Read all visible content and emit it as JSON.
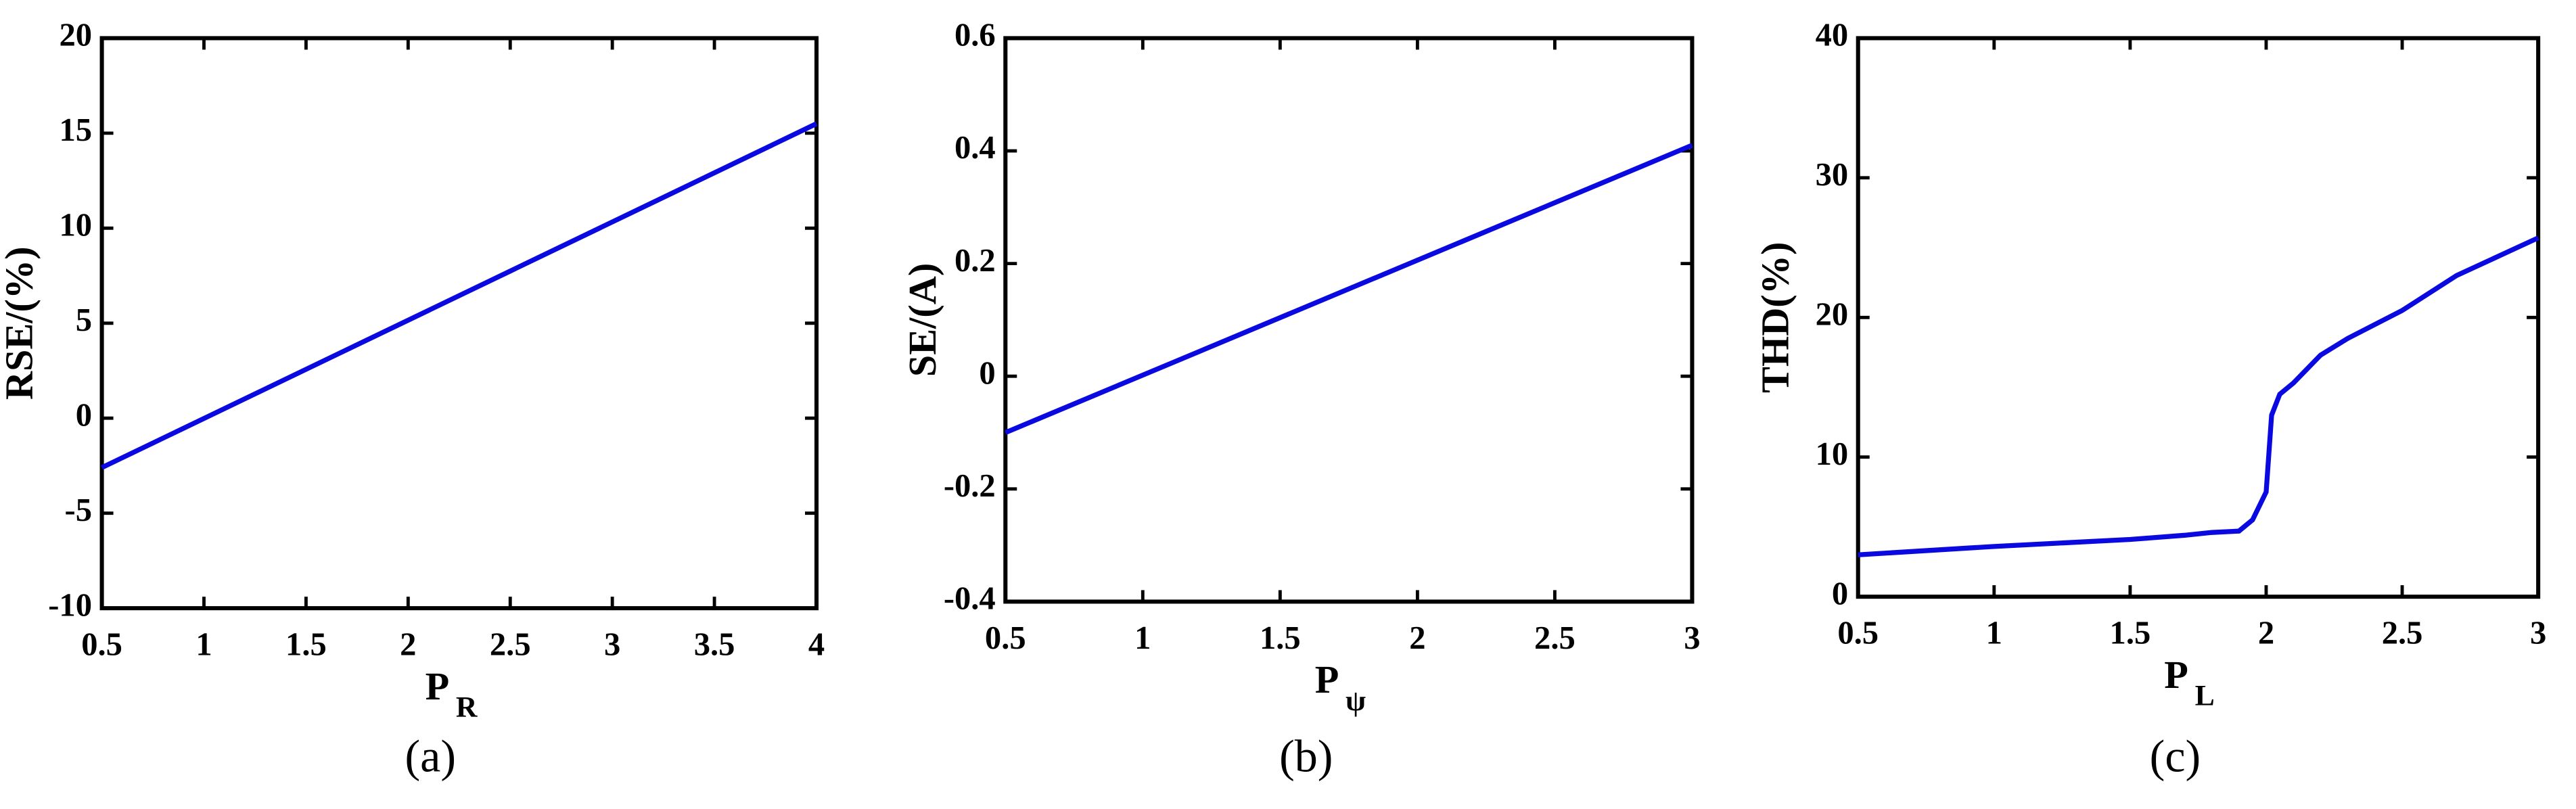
{
  "chart_data": [
    {
      "type": "line",
      "ylabel": "RSE/(%)",
      "xlabel": "P",
      "xlabel_sub": "R",
      "caption": "(a)",
      "xlim": [
        0.5,
        4
      ],
      "ylim": [
        -10,
        20
      ],
      "xticks": [
        0.5,
        1,
        1.5,
        2,
        2.5,
        3,
        3.5,
        4
      ],
      "yticks": [
        -10,
        -5,
        0,
        5,
        10,
        15,
        20
      ],
      "series": [
        {
          "color": "#0a0ae0",
          "x": [
            0.5,
            4
          ],
          "values": [
            -2.6,
            15.5
          ]
        }
      ]
    },
    {
      "type": "line",
      "ylabel": "SE/(A)",
      "xlabel": "P",
      "xlabel_sub": "ψ",
      "caption": "(b)",
      "xlim": [
        0.5,
        3
      ],
      "ylim": [
        -0.4,
        0.6
      ],
      "xticks": [
        0.5,
        1,
        1.5,
        2,
        2.5,
        3
      ],
      "yticks": [
        -0.4,
        -0.2,
        0,
        0.2,
        0.4,
        0.6
      ],
      "series": [
        {
          "color": "#0a0ae0",
          "x": [
            0.5,
            3
          ],
          "values": [
            -0.1,
            0.41
          ]
        }
      ]
    },
    {
      "type": "line",
      "ylabel": "THD(%)",
      "xlabel": "P",
      "xlabel_sub": "L",
      "caption": "(c)",
      "xlim": [
        0.5,
        3
      ],
      "ylim": [
        0,
        40
      ],
      "xticks": [
        0.5,
        1,
        1.5,
        2,
        2.5,
        3
      ],
      "yticks": [
        0,
        10,
        20,
        30,
        40
      ],
      "series": [
        {
          "color": "#0a0ae0",
          "x": [
            0.5,
            1,
            1.5,
            1.7,
            1.8,
            1.9,
            1.95,
            2.0,
            2.02,
            2.05,
            2.1,
            2.2,
            2.3,
            2.5,
            2.7,
            3
          ],
          "values": [
            3,
            3.6,
            4.1,
            4.4,
            4.6,
            4.7,
            5.5,
            7.5,
            13,
            14.5,
            15.3,
            17.3,
            18.5,
            20.5,
            23,
            25.7
          ]
        }
      ]
    }
  ]
}
